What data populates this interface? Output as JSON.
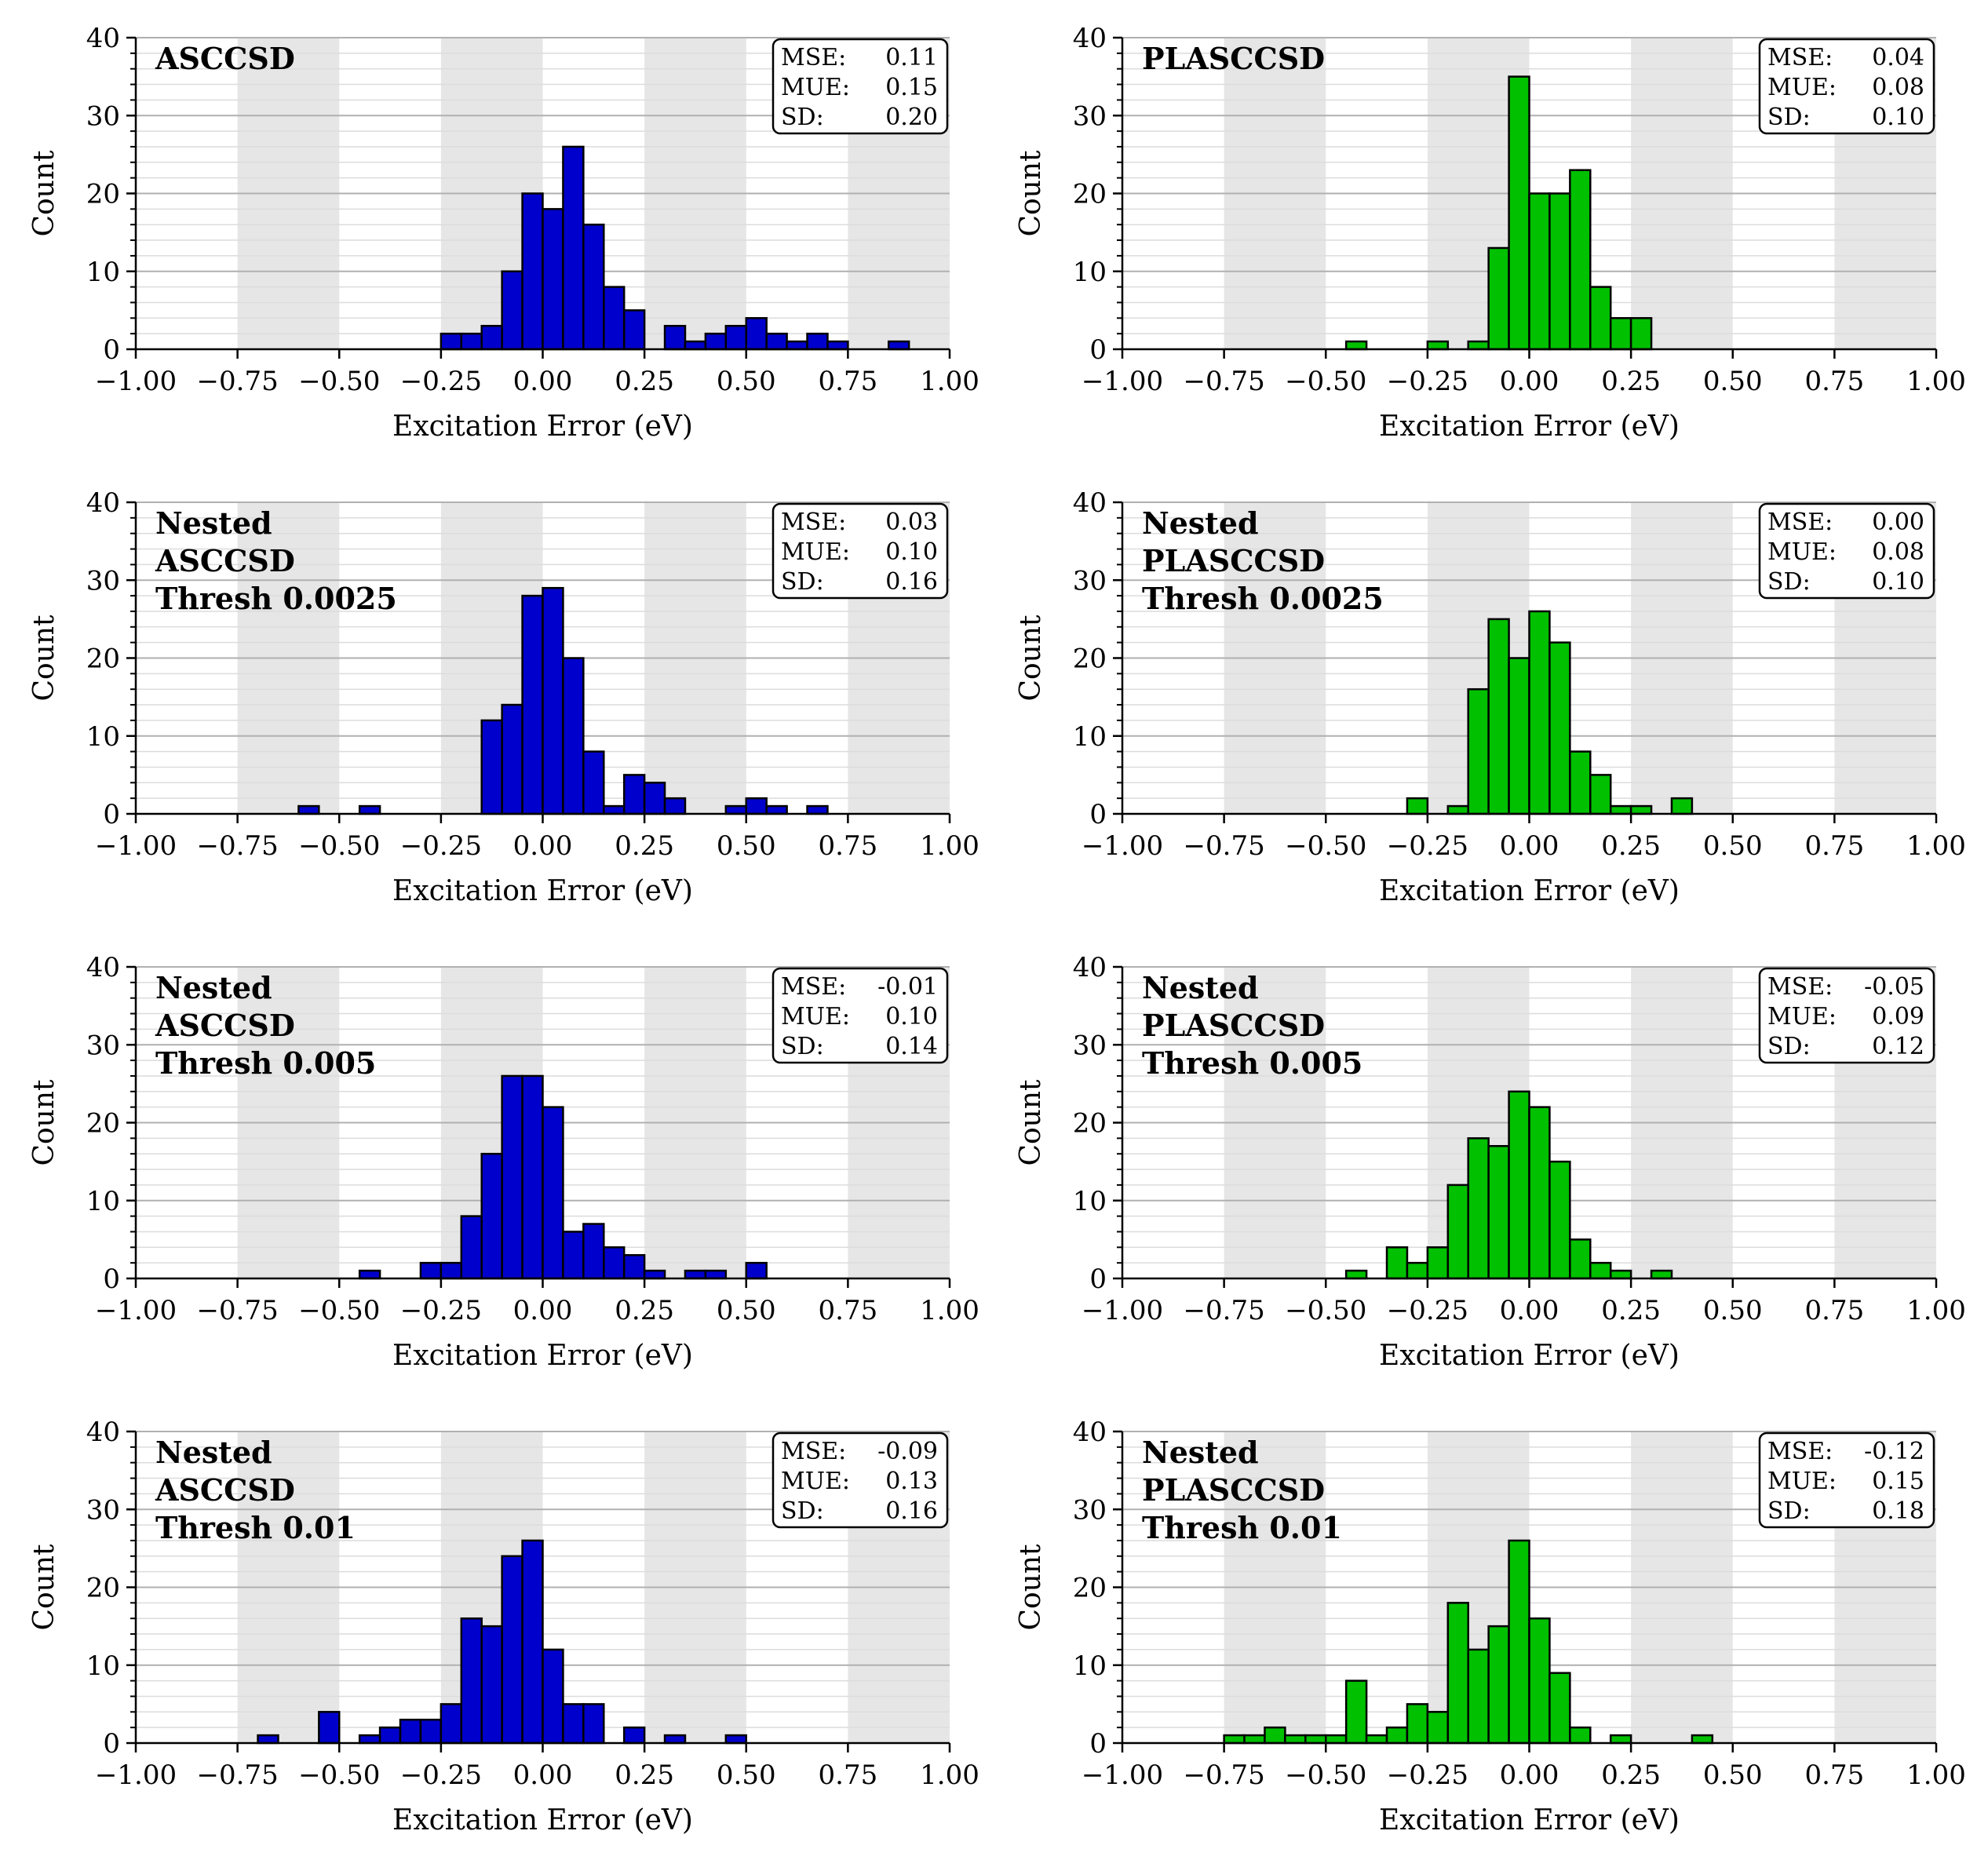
{
  "colors": {
    "blue": "#0000cc",
    "green": "#00c000",
    "band": "#e6e6e6",
    "grid_major": "#b0b0b0",
    "grid_minor": "#dcdcdc"
  },
  "chart_data": [
    {
      "type": "bar",
      "title": "ASCCSD",
      "xlabel": "Excitation Error (eV)",
      "ylabel": "Count",
      "xlim": [
        -1.0,
        1.0
      ],
      "ylim": [
        0,
        40
      ],
      "xticks": [
        "−1.00",
        "−0.75",
        "−0.50",
        "−0.25",
        "0.00",
        "0.25",
        "0.50",
        "0.75",
        "1.00"
      ],
      "yticks": [
        "0",
        "10",
        "20",
        "30",
        "40"
      ],
      "stats": [
        "MSE:  0.11",
        "MUE:  0.15",
        "SD:     0.20"
      ],
      "color": "blue",
      "bin_width": 0.05,
      "bins": [
        [
          -0.25,
          2
        ],
        [
          -0.2,
          2
        ],
        [
          -0.15,
          3
        ],
        [
          -0.1,
          10
        ],
        [
          -0.05,
          20
        ],
        [
          0.0,
          18
        ],
        [
          0.05,
          26
        ],
        [
          0.1,
          16
        ],
        [
          0.15,
          8
        ],
        [
          0.2,
          5
        ],
        [
          0.3,
          3
        ],
        [
          0.35,
          1
        ],
        [
          0.4,
          2
        ],
        [
          0.45,
          3
        ],
        [
          0.5,
          4
        ],
        [
          0.55,
          2
        ],
        [
          0.6,
          1
        ],
        [
          0.65,
          2
        ],
        [
          0.7,
          1
        ],
        [
          0.85,
          1
        ]
      ]
    },
    {
      "type": "bar",
      "title": "PLASCCSD",
      "xlabel": "Excitation Error (eV)",
      "ylabel": "Count",
      "xlim": [
        -1.0,
        1.0
      ],
      "ylim": [
        0,
        40
      ],
      "xticks": [
        "−1.00",
        "−0.75",
        "−0.50",
        "−0.25",
        "0.00",
        "0.25",
        "0.50",
        "0.75",
        "1.00"
      ],
      "yticks": [
        "0",
        "10",
        "20",
        "30",
        "40"
      ],
      "stats": [
        "MSE:  0.04",
        "MUE:  0.08",
        "SD:     0.10"
      ],
      "color": "green",
      "bin_width": 0.05,
      "bins": [
        [
          -0.45,
          1
        ],
        [
          -0.25,
          1
        ],
        [
          -0.15,
          1
        ],
        [
          -0.1,
          13
        ],
        [
          -0.05,
          35
        ],
        [
          0.0,
          20
        ],
        [
          0.05,
          20
        ],
        [
          0.1,
          23
        ],
        [
          0.15,
          8
        ],
        [
          0.2,
          4
        ],
        [
          0.25,
          4
        ]
      ]
    },
    {
      "type": "bar",
      "title": "Nested\nASCCSD\nThresh 0.0025",
      "xlabel": "Excitation Error (eV)",
      "ylabel": "Count",
      "xlim": [
        -1.0,
        1.0
      ],
      "ylim": [
        0,
        40
      ],
      "xticks": [
        "−1.00",
        "−0.75",
        "−0.50",
        "−0.25",
        "0.00",
        "0.25",
        "0.50",
        "0.75",
        "1.00"
      ],
      "yticks": [
        "0",
        "10",
        "20",
        "30",
        "40"
      ],
      "stats": [
        "MSE:  0.03",
        "MUE:  0.10",
        "SD:     0.16"
      ],
      "color": "blue",
      "bin_width": 0.05,
      "bins": [
        [
          -0.6,
          1
        ],
        [
          -0.45,
          1
        ],
        [
          -0.15,
          12
        ],
        [
          -0.1,
          14
        ],
        [
          -0.05,
          28
        ],
        [
          0.0,
          29
        ],
        [
          0.05,
          20
        ],
        [
          0.1,
          8
        ],
        [
          0.15,
          1
        ],
        [
          0.2,
          5
        ],
        [
          0.25,
          4
        ],
        [
          0.3,
          2
        ],
        [
          0.45,
          1
        ],
        [
          0.5,
          2
        ],
        [
          0.55,
          1
        ],
        [
          0.65,
          1
        ]
      ]
    },
    {
      "type": "bar",
      "title": "Nested\nPLASCCSD\nThresh 0.0025",
      "xlabel": "Excitation Error (eV)",
      "ylabel": "Count",
      "xlim": [
        -1.0,
        1.0
      ],
      "ylim": [
        0,
        40
      ],
      "xticks": [
        "−1.00",
        "−0.75",
        "−0.50",
        "−0.25",
        "0.00",
        "0.25",
        "0.50",
        "0.75",
        "1.00"
      ],
      "yticks": [
        "0",
        "10",
        "20",
        "30",
        "40"
      ],
      "stats": [
        "MSE:  0.00",
        "MUE:  0.08",
        "SD:     0.10"
      ],
      "color": "green",
      "bin_width": 0.05,
      "bins": [
        [
          -0.3,
          2
        ],
        [
          -0.2,
          1
        ],
        [
          -0.15,
          16
        ],
        [
          -0.1,
          25
        ],
        [
          -0.05,
          20
        ],
        [
          0.0,
          26
        ],
        [
          0.05,
          22
        ],
        [
          0.1,
          8
        ],
        [
          0.15,
          5
        ],
        [
          0.2,
          1
        ],
        [
          0.25,
          1
        ],
        [
          0.35,
          2
        ]
      ]
    },
    {
      "type": "bar",
      "title": "Nested\nASCCSD\nThresh 0.005",
      "xlabel": "Excitation Error (eV)",
      "ylabel": "Count",
      "xlim": [
        -1.0,
        1.0
      ],
      "ylim": [
        0,
        40
      ],
      "xticks": [
        "−1.00",
        "−0.75",
        "−0.50",
        "−0.25",
        "0.00",
        "0.25",
        "0.50",
        "0.75",
        "1.00"
      ],
      "yticks": [
        "0",
        "10",
        "20",
        "30",
        "40"
      ],
      "stats": [
        "MSE: -0.01",
        "MUE:  0.10",
        "SD:     0.14"
      ],
      "color": "blue",
      "bin_width": 0.05,
      "bins": [
        [
          -0.45,
          1
        ],
        [
          -0.3,
          2
        ],
        [
          -0.25,
          2
        ],
        [
          -0.2,
          8
        ],
        [
          -0.15,
          16
        ],
        [
          -0.1,
          26
        ],
        [
          -0.05,
          26
        ],
        [
          0.0,
          22
        ],
        [
          0.05,
          6
        ],
        [
          0.1,
          7
        ],
        [
          0.15,
          4
        ],
        [
          0.2,
          3
        ],
        [
          0.25,
          1
        ],
        [
          0.35,
          1
        ],
        [
          0.4,
          1
        ],
        [
          0.5,
          2
        ]
      ]
    },
    {
      "type": "bar",
      "title": "Nested\nPLASCCSD\nThresh 0.005",
      "xlabel": "Excitation Error (eV)",
      "ylabel": "Count",
      "xlim": [
        -1.0,
        1.0
      ],
      "ylim": [
        0,
        40
      ],
      "xticks": [
        "−1.00",
        "−0.75",
        "−0.50",
        "−0.25",
        "0.00",
        "0.25",
        "0.50",
        "0.75",
        "1.00"
      ],
      "yticks": [
        "0",
        "10",
        "20",
        "30",
        "40"
      ],
      "stats": [
        "MSE: -0.05",
        "MUE:  0.09",
        "SD:     0.12"
      ],
      "color": "green",
      "bin_width": 0.05,
      "bins": [
        [
          -0.45,
          1
        ],
        [
          -0.35,
          4
        ],
        [
          -0.3,
          2
        ],
        [
          -0.25,
          4
        ],
        [
          -0.2,
          12
        ],
        [
          -0.15,
          18
        ],
        [
          -0.1,
          17
        ],
        [
          -0.05,
          24
        ],
        [
          0.0,
          22
        ],
        [
          0.05,
          15
        ],
        [
          0.1,
          5
        ],
        [
          0.15,
          2
        ],
        [
          0.2,
          1
        ],
        [
          0.3,
          1
        ]
      ]
    },
    {
      "type": "bar",
      "title": "Nested\nASCCSD\nThresh 0.01",
      "xlabel": "Excitation Error (eV)",
      "ylabel": "Count",
      "xlim": [
        -1.0,
        1.0
      ],
      "ylim": [
        0,
        40
      ],
      "xticks": [
        "−1.00",
        "−0.75",
        "−0.50",
        "−0.25",
        "0.00",
        "0.25",
        "0.50",
        "0.75",
        "1.00"
      ],
      "yticks": [
        "0",
        "10",
        "20",
        "30",
        "40"
      ],
      "stats": [
        "MSE: -0.09",
        "MUE:  0.13",
        "SD:     0.16"
      ],
      "color": "blue",
      "bin_width": 0.05,
      "bins": [
        [
          -0.7,
          1
        ],
        [
          -0.55,
          4
        ],
        [
          -0.45,
          1
        ],
        [
          -0.4,
          2
        ],
        [
          -0.35,
          3
        ],
        [
          -0.3,
          3
        ],
        [
          -0.25,
          5
        ],
        [
          -0.2,
          16
        ],
        [
          -0.15,
          15
        ],
        [
          -0.1,
          24
        ],
        [
          -0.05,
          26
        ],
        [
          0.0,
          12
        ],
        [
          0.05,
          5
        ],
        [
          0.1,
          5
        ],
        [
          0.2,
          2
        ],
        [
          0.3,
          1
        ],
        [
          0.45,
          1
        ]
      ]
    },
    {
      "type": "bar",
      "title": "Nested\nPLASCCSD\nThresh 0.01",
      "xlabel": "Excitation Error (eV)",
      "ylabel": "Count",
      "xlim": [
        -1.0,
        1.0
      ],
      "ylim": [
        0,
        40
      ],
      "xticks": [
        "−1.00",
        "−0.75",
        "−0.50",
        "−0.25",
        "0.00",
        "0.25",
        "0.50",
        "0.75",
        "1.00"
      ],
      "yticks": [
        "0",
        "10",
        "20",
        "30",
        "40"
      ],
      "stats": [
        "MSE: -0.12",
        "MUE:  0.15",
        "SD:     0.18"
      ],
      "color": "green",
      "bin_width": 0.05,
      "bins": [
        [
          -0.75,
          1
        ],
        [
          -0.7,
          1
        ],
        [
          -0.65,
          2
        ],
        [
          -0.6,
          1
        ],
        [
          -0.55,
          1
        ],
        [
          -0.5,
          1
        ],
        [
          -0.45,
          8
        ],
        [
          -0.4,
          1
        ],
        [
          -0.35,
          2
        ],
        [
          -0.3,
          5
        ],
        [
          -0.25,
          4
        ],
        [
          -0.2,
          18
        ],
        [
          -0.15,
          12
        ],
        [
          -0.1,
          15
        ],
        [
          -0.05,
          26
        ],
        [
          0.0,
          16
        ],
        [
          0.05,
          9
        ],
        [
          0.1,
          2
        ],
        [
          0.2,
          1
        ],
        [
          0.4,
          1
        ]
      ]
    }
  ]
}
